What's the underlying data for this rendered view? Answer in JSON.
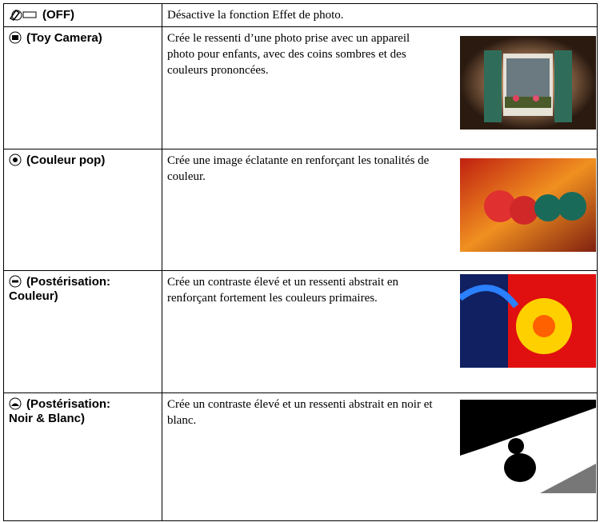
{
  "table": {
    "rows": [
      {
        "label": [
          "(OFF)"
        ],
        "description": "Désactive la fonction Effet de photo."
      },
      {
        "label": [
          "(Toy Camera)"
        ],
        "description": "Crée le ressenti d’une photo prise avec un appareil photo pour enfants, avec des coins sombres et des couleurs prononcées."
      },
      {
        "label": [
          "(Couleur pop)"
        ],
        "description": "Crée une image éclatante en renforçant les tonalités de couleur."
      },
      {
        "label": [
          "(Postérisation:",
          "Couleur)"
        ],
        "description": "Crée un contraste élevé et un ressenti abstrait en renforçant fortement les couleurs primaires."
      },
      {
        "label": [
          "(Postérisation:",
          "Noir & Blanc)"
        ],
        "description": "Crée un contraste élevé et un ressenti abstrait en noir et blanc."
      }
    ]
  }
}
